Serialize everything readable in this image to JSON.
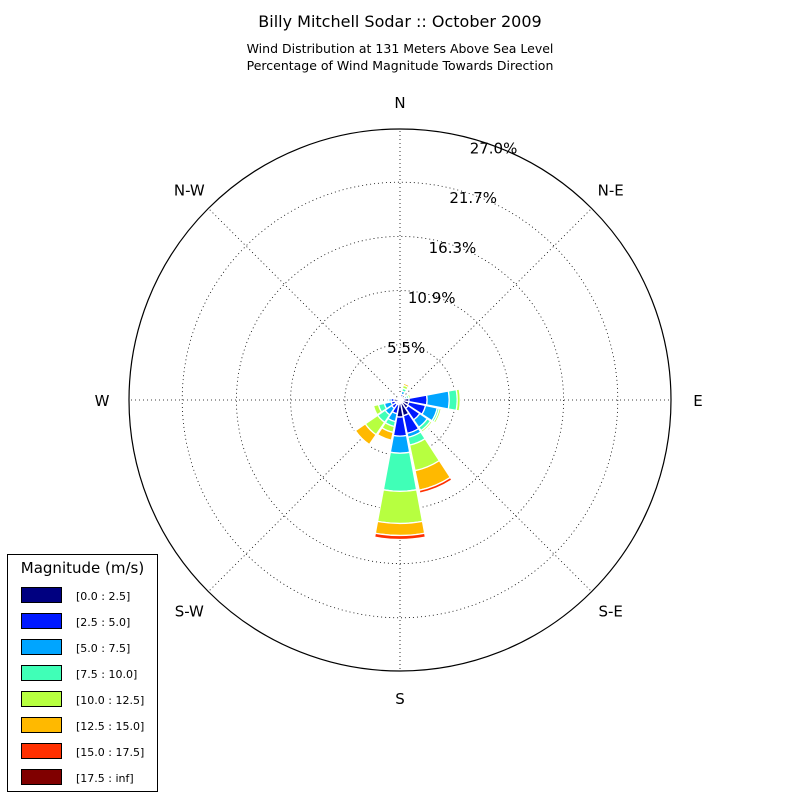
{
  "title": "Billy Mitchell Sodar :: October 2009",
  "subtitle_1": "Wind Distribution at 131 Meters Above Sea Level",
  "subtitle_2": "Percentage of Wind Magnitude Towards Direction",
  "chart_data": {
    "type": "windrose",
    "directions": [
      "N",
      "N-E",
      "E",
      "S-E",
      "S",
      "S-W",
      "W",
      "N-W"
    ],
    "radial_ticks": [
      "5.5%",
      "10.9%",
      "16.3%",
      "21.7%",
      "27.0%"
    ],
    "radial_tick_values": [
      5.5,
      10.9,
      16.3,
      21.7,
      27.0
    ],
    "radial_max": 27.0,
    "bins": [
      "[0.0 : 2.5]",
      "[2.5 : 5.0]",
      "[5.0 : 7.5]",
      "[7.5 : 10.0]",
      "[10.0 : 12.5]",
      "[12.5 : 15.0]",
      "[15.0 : 17.5]",
      "[17.5 : inf]"
    ],
    "colors": [
      "#000080",
      "#0019ff",
      "#00a5ff",
      "#40ffb7",
      "#b7ff40",
      "#ffb900",
      "#ff3000",
      "#800000"
    ],
    "legend_title": "Magnitude (m/s)",
    "legend_placement": "lower-left",
    "sectors": [
      {
        "angle": 0,
        "values": [
          0.3,
          0.1,
          0.05,
          0.05,
          0,
          0,
          0,
          0
        ]
      },
      {
        "angle": 22.5,
        "values": [
          0.3,
          0.3,
          0.3,
          0.3,
          0.3,
          0.2,
          0,
          0
        ]
      },
      {
        "angle": 67.5,
        "values": [
          0.2,
          0.3,
          0.2,
          0.2,
          0.2,
          0.1,
          0,
          0
        ]
      },
      {
        "angle": 90,
        "values": [
          0.9,
          1.8,
          2.2,
          0.8,
          0.3,
          0,
          0,
          0
        ]
      },
      {
        "angle": 112.5,
        "values": [
          0.9,
          1.7,
          1.2,
          0.2,
          0.2,
          0,
          0,
          0
        ]
      },
      {
        "angle": 135,
        "values": [
          1.0,
          1.4,
          0.9,
          0.4,
          0.2,
          0.1,
          0,
          0
        ]
      },
      {
        "angle": 157.5,
        "values": [
          1.6,
          1.8,
          0.4,
          0.8,
          2.6,
          2.0,
          0.3,
          0
        ]
      },
      {
        "angle": 180,
        "values": [
          1.7,
          1.9,
          1.7,
          3.8,
          3.2,
          1.2,
          0.4,
          0
        ]
      },
      {
        "angle": 202.5,
        "values": [
          0.5,
          0.9,
          0.8,
          0.5,
          0.6,
          0.8,
          0,
          0
        ]
      },
      {
        "angle": 225,
        "values": [
          0.5,
          0.5,
          0.8,
          0.9,
          1.5,
          1.2,
          0.1,
          0
        ]
      },
      {
        "angle": 247.5,
        "values": [
          0.5,
          0.4,
          0.7,
          0.6,
          0.5,
          0,
          0,
          0
        ]
      },
      {
        "angle": 270,
        "values": [
          0.6,
          0.3,
          0.2,
          0.1,
          0,
          0,
          0,
          0
        ]
      },
      {
        "angle": 292.5,
        "values": [
          0.1,
          0.1,
          0,
          0,
          0,
          0,
          0,
          0
        ]
      },
      {
        "angle": 337.5,
        "values": [
          0.1,
          0.1,
          0,
          0,
          0,
          0,
          0,
          0
        ]
      }
    ]
  }
}
